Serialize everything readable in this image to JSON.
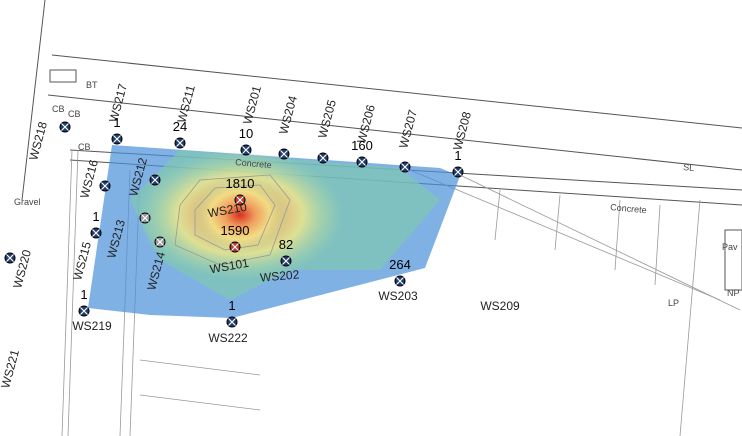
{
  "wells": [
    {
      "label": "WS217",
      "value": 1
    },
    {
      "label": "WS211",
      "value": 24
    },
    {
      "label": "WS201",
      "value": 10
    },
    {
      "label": "WS204"
    },
    {
      "label": "WS205"
    },
    {
      "label": "WS206",
      "value": 160
    },
    {
      "label": "WS207"
    },
    {
      "label": "WS208",
      "value": 1
    },
    {
      "label": "WS218"
    },
    {
      "label": "WS216"
    },
    {
      "label": "WS212"
    },
    {
      "label": "WS213"
    },
    {
      "label": "WS215",
      "value": 1
    },
    {
      "label": "WS214"
    },
    {
      "label": "WS210",
      "value": 1810
    },
    {
      "label": "WS101",
      "value": 1590
    },
    {
      "label": "WS202",
      "value": 82
    },
    {
      "label": "WS203",
      "value": 264
    },
    {
      "label": "WS209"
    },
    {
      "label": "WS219",
      "value": 1
    },
    {
      "label": "WS222",
      "value": 1
    },
    {
      "label": "WS220"
    },
    {
      "label": "WS221"
    }
  ],
  "labels": [
    "BT",
    "CB",
    "CB",
    "CB",
    "Gravel",
    "Concrete",
    "Concrete",
    "SL",
    "LP",
    "NP",
    "Pav"
  ]
}
